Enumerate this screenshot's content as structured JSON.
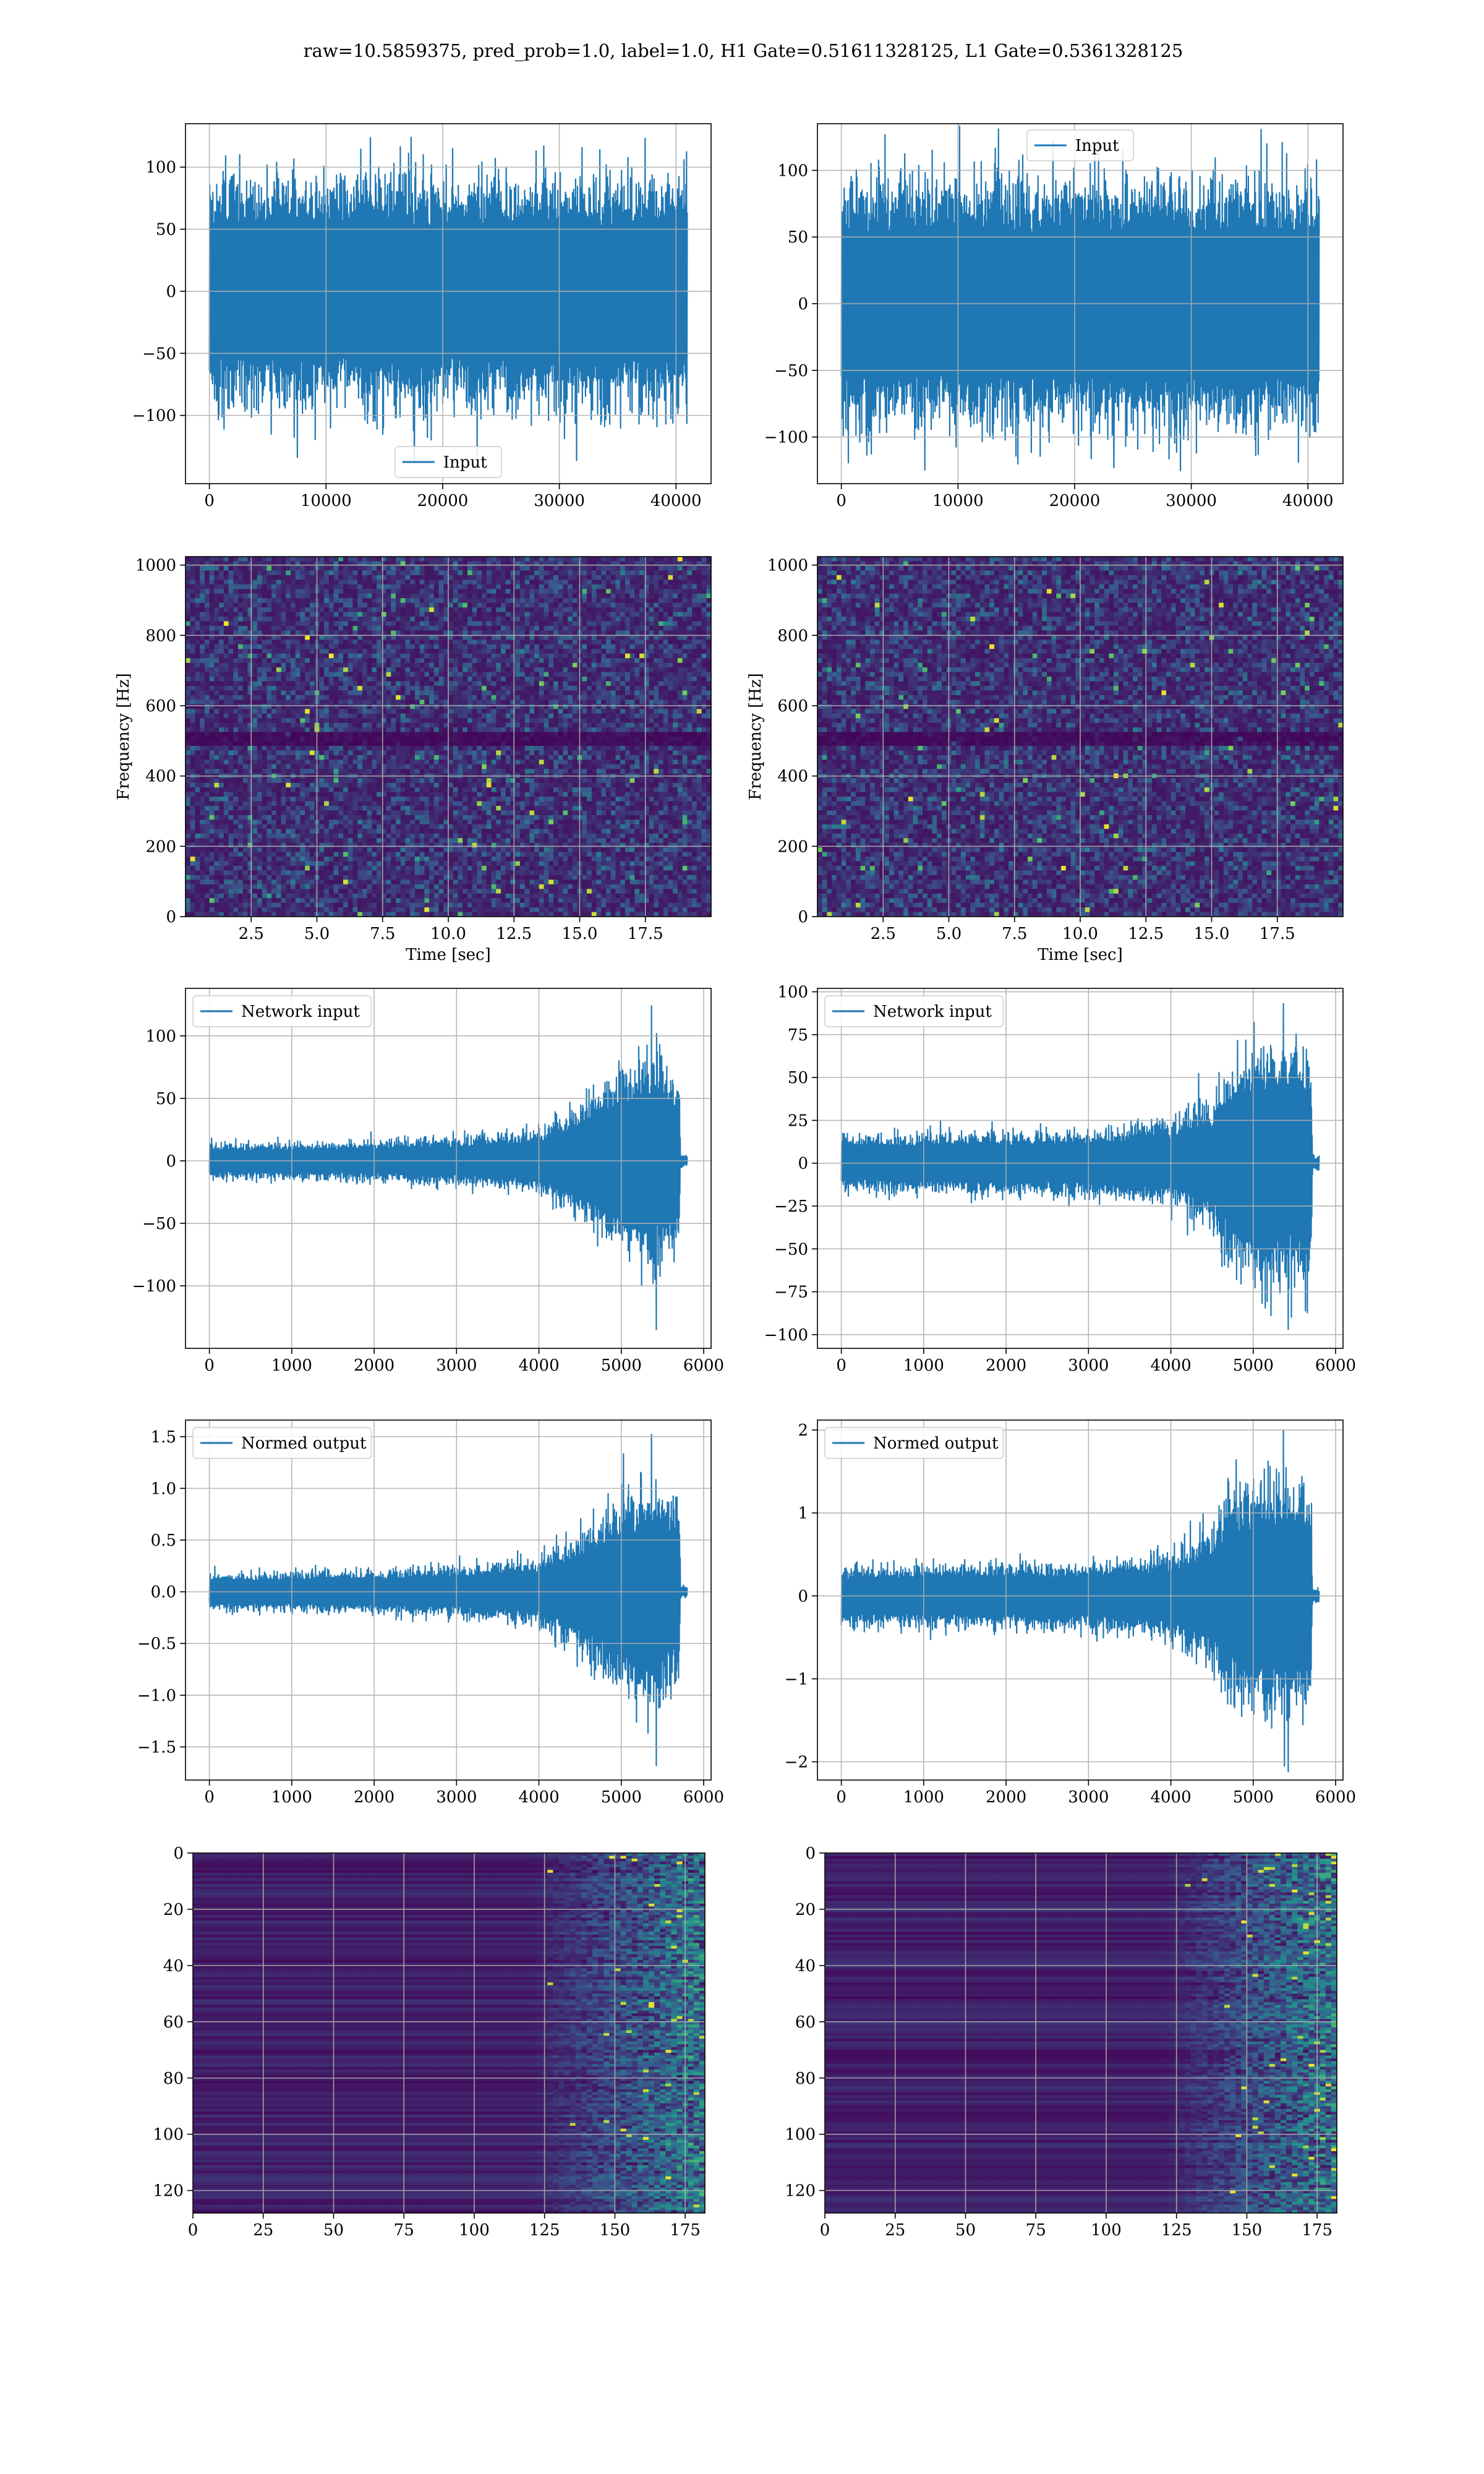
{
  "suptitle": "raw=10.5859375, pred_prob=1.0, label=1.0, H1 Gate=0.51611328125, L1 Gate=0.5361328125",
  "colors": {
    "line": "#1f77b4",
    "grid": "#b0b0b0",
    "heat_low": "#440154",
    "heat_high": "#fde725"
  },
  "chart_data": [
    {
      "id": "input-h1",
      "type": "line",
      "render": "noise-band",
      "xlim": [
        -2048,
        43008
      ],
      "ylim": [
        -155,
        135
      ],
      "xticks": [
        0,
        10000,
        20000,
        30000,
        40000
      ],
      "yticks": [
        -100,
        -50,
        0,
        50,
        100
      ],
      "xlabel": "",
      "ylabel": "",
      "legend": {
        "label": "Input",
        "loc": "lower-center"
      },
      "series": [
        {
          "name": "Input",
          "n_samples": 40960,
          "x_range": [
            0,
            40960
          ],
          "envelope": [
            {
              "x": 0,
              "amp": 70
            },
            {
              "x": 40960,
              "amp": 70
            }
          ],
          "peak_max": 124,
          "peak_min": -137
        }
      ],
      "grid": true
    },
    {
      "id": "input-l1",
      "type": "line",
      "render": "noise-band",
      "xlim": [
        -2048,
        43008
      ],
      "ylim": [
        -135,
        135
      ],
      "xticks": [
        0,
        10000,
        20000,
        30000,
        40000
      ],
      "yticks": [
        -100,
        -50,
        0,
        50,
        100
      ],
      "xlabel": "",
      "ylabel": "",
      "legend": {
        "label": "Input",
        "loc": "upper-center"
      },
      "series": [
        {
          "name": "Input",
          "n_samples": 40960,
          "x_range": [
            0,
            40960
          ],
          "envelope": [
            {
              "x": 0,
              "amp": 70
            },
            {
              "x": 40960,
              "amp": 70
            }
          ],
          "peak_max": 122,
          "peak_min": -123
        }
      ],
      "grid": true
    },
    {
      "id": "spectrogram-h1",
      "type": "heatmap",
      "render": "spectrogram",
      "xlim": [
        0,
        20
      ],
      "ylim": [
        0,
        1024
      ],
      "xticks": [
        2.5,
        5.0,
        7.5,
        10.0,
        12.5,
        15.0,
        17.5
      ],
      "yticks": [
        0,
        200,
        400,
        600,
        800,
        1000
      ],
      "xlabel": "Time [sec]",
      "ylabel": "Frequency [Hz]",
      "dark_band_hz": [
        480,
        520
      ],
      "colormap": "viridis",
      "grid": true
    },
    {
      "id": "spectrogram-l1",
      "type": "heatmap",
      "render": "spectrogram",
      "xlim": [
        0,
        20
      ],
      "ylim": [
        0,
        1024
      ],
      "xticks": [
        2.5,
        5.0,
        7.5,
        10.0,
        12.5,
        15.0,
        17.5
      ],
      "yticks": [
        0,
        200,
        400,
        600,
        800,
        1000
      ],
      "xlabel": "Time [sec]",
      "ylabel": "Frequency [Hz]",
      "dark_band_hz": [
        480,
        520
      ],
      "colormap": "viridis",
      "grid": true
    },
    {
      "id": "network-input-h1",
      "type": "line",
      "render": "noise-band",
      "xlim": [
        -290,
        6090
      ],
      "ylim": [
        -150,
        138
      ],
      "xticks": [
        0,
        1000,
        2000,
        3000,
        4000,
        5000,
        6000
      ],
      "yticks": [
        -100,
        -50,
        0,
        50,
        100
      ],
      "xlabel": "",
      "ylabel": "",
      "legend": {
        "label": "Network input",
        "loc": "upper-left"
      },
      "series": [
        {
          "name": "Network input",
          "n_samples": 5760,
          "x_range": [
            0,
            5800
          ],
          "envelope": [
            {
              "x": 0,
              "amp": 10
            },
            {
              "x": 2000,
              "amp": 12
            },
            {
              "x": 3000,
              "amp": 14
            },
            {
              "x": 4000,
              "amp": 18
            },
            {
              "x": 4500,
              "amp": 35
            },
            {
              "x": 5000,
              "amp": 55
            },
            {
              "x": 5400,
              "amp": 65
            },
            {
              "x": 5700,
              "amp": 55
            },
            {
              "x": 5720,
              "amp": 3
            },
            {
              "x": 5800,
              "amp": 3
            }
          ],
          "peak_max": 124,
          "peak_min": -135
        }
      ],
      "grid": true
    },
    {
      "id": "network-input-l1",
      "type": "line",
      "render": "noise-band",
      "xlim": [
        -290,
        6090
      ],
      "ylim": [
        -108,
        102
      ],
      "xticks": [
        0,
        1000,
        2000,
        3000,
        4000,
        5000,
        6000
      ],
      "yticks": [
        -100,
        -75,
        -50,
        -25,
        0,
        25,
        50,
        75,
        100
      ],
      "xlabel": "",
      "ylabel": "",
      "legend": {
        "label": "Network input",
        "loc": "upper-left"
      },
      "series": [
        {
          "name": "Network input",
          "n_samples": 5760,
          "x_range": [
            0,
            5800
          ],
          "envelope": [
            {
              "x": 0,
              "amp": 12
            },
            {
              "x": 3000,
              "amp": 14
            },
            {
              "x": 4000,
              "amp": 18
            },
            {
              "x": 4500,
              "amp": 28
            },
            {
              "x": 4700,
              "amp": 45
            },
            {
              "x": 5200,
              "amp": 55
            },
            {
              "x": 5700,
              "amp": 50
            },
            {
              "x": 5720,
              "amp": 3
            },
            {
              "x": 5800,
              "amp": 3
            }
          ],
          "peak_max": 93,
          "peak_min": -97
        }
      ],
      "grid": true
    },
    {
      "id": "normed-output-h1",
      "type": "line",
      "render": "noise-band",
      "xlim": [
        -290,
        6090
      ],
      "ylim": [
        -1.82,
        1.66
      ],
      "xticks": [
        0,
        1000,
        2000,
        3000,
        4000,
        5000,
        6000
      ],
      "yticks": [
        -1.5,
        -1.0,
        -0.5,
        0.0,
        0.5,
        1.0,
        1.5
      ],
      "xlabel": "",
      "ylabel": "",
      "legend": {
        "label": "Normed output",
        "loc": "upper-left"
      },
      "series": [
        {
          "name": "Normed output",
          "n_samples": 5760,
          "x_range": [
            0,
            5800
          ],
          "envelope": [
            {
              "x": 0,
              "amp": 0.13
            },
            {
              "x": 2000,
              "amp": 0.15
            },
            {
              "x": 3000,
              "amp": 0.18
            },
            {
              "x": 4000,
              "amp": 0.24
            },
            {
              "x": 4500,
              "amp": 0.45
            },
            {
              "x": 5000,
              "amp": 0.7
            },
            {
              "x": 5400,
              "amp": 0.8
            },
            {
              "x": 5700,
              "amp": 0.7
            },
            {
              "x": 5720,
              "amp": 0.04
            },
            {
              "x": 5800,
              "amp": 0.04
            }
          ],
          "peak_max": 1.52,
          "peak_min": -1.68
        }
      ],
      "grid": true
    },
    {
      "id": "normed-output-l1",
      "type": "line",
      "render": "noise-band",
      "xlim": [
        -290,
        6090
      ],
      "ylim": [
        -2.22,
        2.12
      ],
      "xticks": [
        0,
        1000,
        2000,
        3000,
        4000,
        5000,
        6000
      ],
      "yticks": [
        -2,
        -1,
        0,
        1,
        2
      ],
      "xlabel": "",
      "ylabel": "",
      "legend": {
        "label": "Normed output",
        "loc": "upper-left"
      },
      "series": [
        {
          "name": "Normed output",
          "n_samples": 5760,
          "x_range": [
            0,
            5800
          ],
          "envelope": [
            {
              "x": 0,
              "amp": 0.26
            },
            {
              "x": 3000,
              "amp": 0.3
            },
            {
              "x": 4000,
              "amp": 0.38
            },
            {
              "x": 4500,
              "amp": 0.6
            },
            {
              "x": 4700,
              "amp": 0.95
            },
            {
              "x": 5200,
              "amp": 1.1
            },
            {
              "x": 5700,
              "amp": 1.0
            },
            {
              "x": 5720,
              "amp": 0.06
            },
            {
              "x": 5800,
              "amp": 0.06
            }
          ],
          "peak_max": 2.0,
          "peak_min": -2.12
        }
      ],
      "grid": true
    },
    {
      "id": "feature-map-h1",
      "type": "heatmap",
      "render": "feature-map",
      "xlim": [
        0,
        182
      ],
      "ylim": [
        128,
        0
      ],
      "xticks": [
        0,
        25,
        50,
        75,
        100,
        125,
        150,
        175
      ],
      "yticks": [
        0,
        20,
        40,
        60,
        80,
        100,
        120
      ],
      "xlabel": "",
      "ylabel": "",
      "active_from_x": 120,
      "colormap": "viridis",
      "grid": true
    },
    {
      "id": "feature-map-l1",
      "type": "heatmap",
      "render": "feature-map",
      "xlim": [
        0,
        182
      ],
      "ylim": [
        128,
        0
      ],
      "xticks": [
        0,
        25,
        50,
        75,
        100,
        125,
        150,
        175
      ],
      "yticks": [
        0,
        20,
        40,
        60,
        80,
        100,
        120
      ],
      "xlabel": "",
      "ylabel": "",
      "active_from_x": 120,
      "colormap": "viridis",
      "grid": true
    }
  ]
}
